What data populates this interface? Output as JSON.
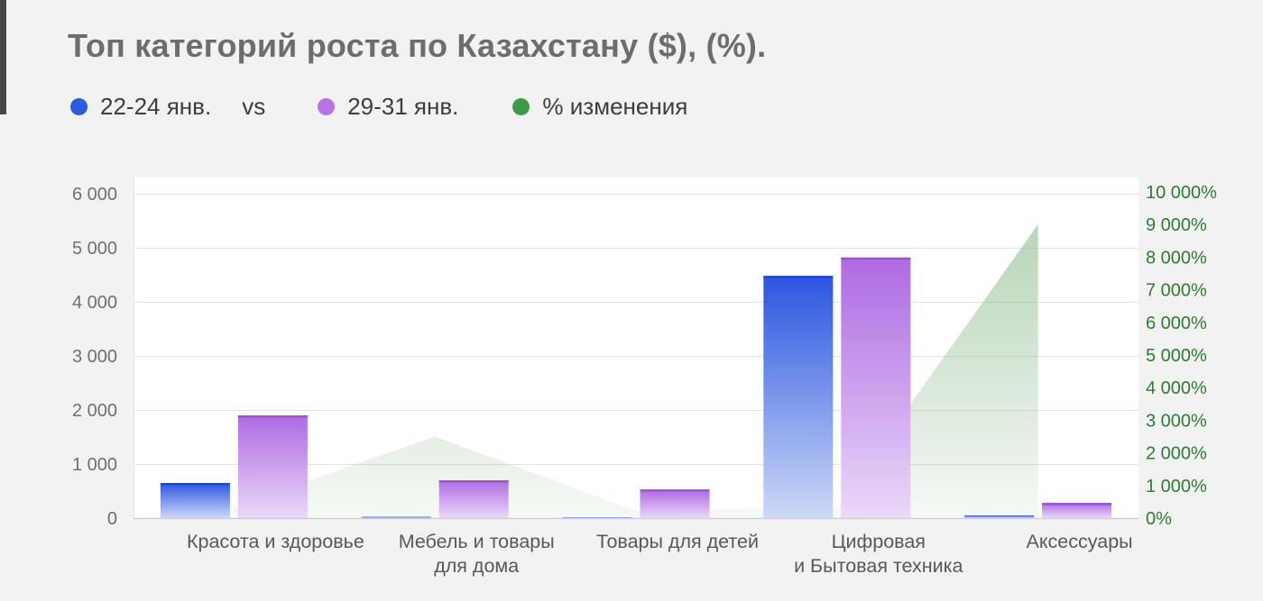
{
  "page": {
    "background": "#f2f2f3",
    "left_edge_strip_color": "#464646"
  },
  "header": {
    "title": "Топ категорий роста по Казахстану ($), (%)."
  },
  "legend": {
    "separator": "vs",
    "items": [
      {
        "label": "22-24 янв.",
        "color": "#2a5ce0"
      },
      {
        "label": "29-31 янв.",
        "color": "#b873e8"
      },
      {
        "label": "% изменения",
        "color": "#3f9a48"
      }
    ]
  },
  "chart_data": {
    "type": "bar",
    "subtype": "combo-bar-area",
    "title": "Топ категорий роста по Казахстану ($), (%).",
    "legend_position": "top",
    "grid": true,
    "categories": [
      [
        "Красота и здоровье"
      ],
      [
        "Мебель и товары",
        "для дома"
      ],
      [
        "Товары для детей"
      ],
      [
        "Цифровая",
        "и Бытовая техника"
      ],
      [
        "Аксессуары"
      ]
    ],
    "series": [
      {
        "name": "22-24 янв.",
        "type": "bar",
        "axis": "left",
        "values": [
          650,
          25,
          15,
          4480,
          50
        ],
        "color_top": "#2a55e0",
        "color_bottom": "#cdd9f7",
        "color_edge": "#1e47cf"
      },
      {
        "name": "29-31 янв.",
        "type": "bar",
        "axis": "left",
        "values": [
          1900,
          700,
          530,
          4820,
          280
        ],
        "color_top": "#ae6ae2",
        "color_bottom": "#ead8f8",
        "color_edge": "#9b50d6"
      },
      {
        "name": "% изменения",
        "type": "area",
        "axis": "right",
        "values": [
          350,
          2500,
          220,
          330,
          9000
        ],
        "color": "#76ae76"
      }
    ],
    "left_axis": {
      "min": 0,
      "max": 6000,
      "step": 1000,
      "tick_labels": [
        "0",
        "1 000",
        "2 000",
        "3 000",
        "4 000",
        "5 000",
        "6 000"
      ],
      "text_color": "#6f6f6f"
    },
    "right_axis": {
      "min": 0,
      "max": 10000,
      "step": 1000,
      "unit": "%",
      "tick_labels": [
        "0%",
        "1 000%",
        "2 000%",
        "3 000%",
        "4 000%",
        "5 000%",
        "6 000%",
        "7 000%",
        "8 000%",
        "9 000%",
        "10 000%"
      ],
      "text_color": "#2e7d32"
    },
    "category_label_color": "#585858"
  }
}
